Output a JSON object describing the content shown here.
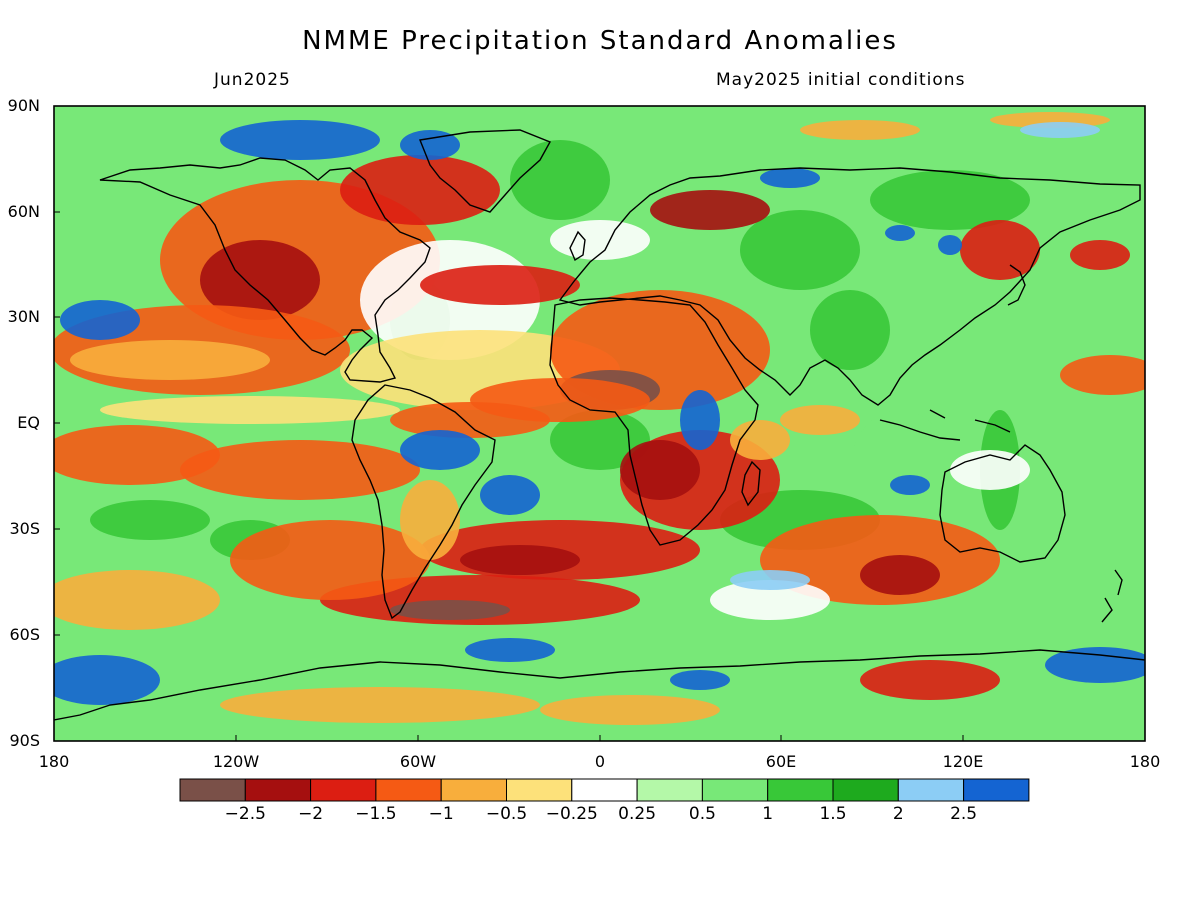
{
  "header": {
    "title": "NMME Precipitation Standard Anomalies",
    "valid_month": "Jun2025",
    "initial_conditions": "May2025 initial conditions"
  },
  "axes": {
    "lat_labels": [
      "90N",
      "60N",
      "30N",
      "EQ",
      "30S",
      "60S",
      "90S"
    ],
    "lon_labels": [
      "180",
      "120W",
      "60W",
      "0",
      "60E",
      "120E",
      "180"
    ]
  },
  "colorbar": {
    "colors": [
      "#7a5048",
      "#a50f0f",
      "#dc1e12",
      "#f55a14",
      "#f8ae3c",
      "#fde17a",
      "#ffffff",
      "#b4f8a8",
      "#78e878",
      "#38c838",
      "#1eaa1e",
      "#8ccdf5",
      "#1464d2"
    ],
    "labels": [
      "−2.5",
      "−2",
      "−1.5",
      "−1",
      "−0.5",
      "−0.25",
      "0.25",
      "0.5",
      "1",
      "1.5",
      "2",
      "2.5"
    ]
  }
}
